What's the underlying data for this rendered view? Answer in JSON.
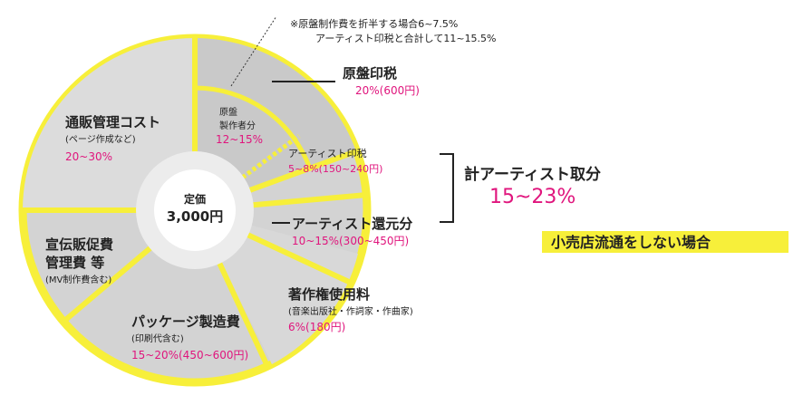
{
  "note": {
    "line1": "※原盤制作費を折半する場合6~7.5%",
    "line2": "アーティスト印税と合計して11~15.5%"
  },
  "center": {
    "label": "定価",
    "price": "3,000円"
  },
  "segments": [
    {
      "title": "原盤印税",
      "value": "20%(600円)"
    },
    {
      "title": "原盤",
      "title2": "製作者分",
      "value": "12~15%"
    },
    {
      "title": "アーティスト印税",
      "value": "5~8%(150~240円)"
    },
    {
      "title": "アーティスト還元分",
      "value": "10~15%(300~450円)"
    },
    {
      "title": "著作権使用料",
      "sub": "(音楽出版社・作詞家・作曲家)",
      "value": "6%(180円)"
    },
    {
      "title": "パッケージ製造費",
      "sub": "(印刷代含む)",
      "value": "15~20%(450~600円)"
    },
    {
      "title": "宣伝販促費",
      "title2": "管理費 等",
      "sub": "(MV制作費含む)"
    },
    {
      "title": "通販管理コスト",
      "sub": "(ページ作成など)",
      "value": "20~30%"
    }
  ],
  "total": {
    "title": "計アーティスト取分",
    "value": "15~23%"
  },
  "badge": "小売店流通をしない場合"
}
